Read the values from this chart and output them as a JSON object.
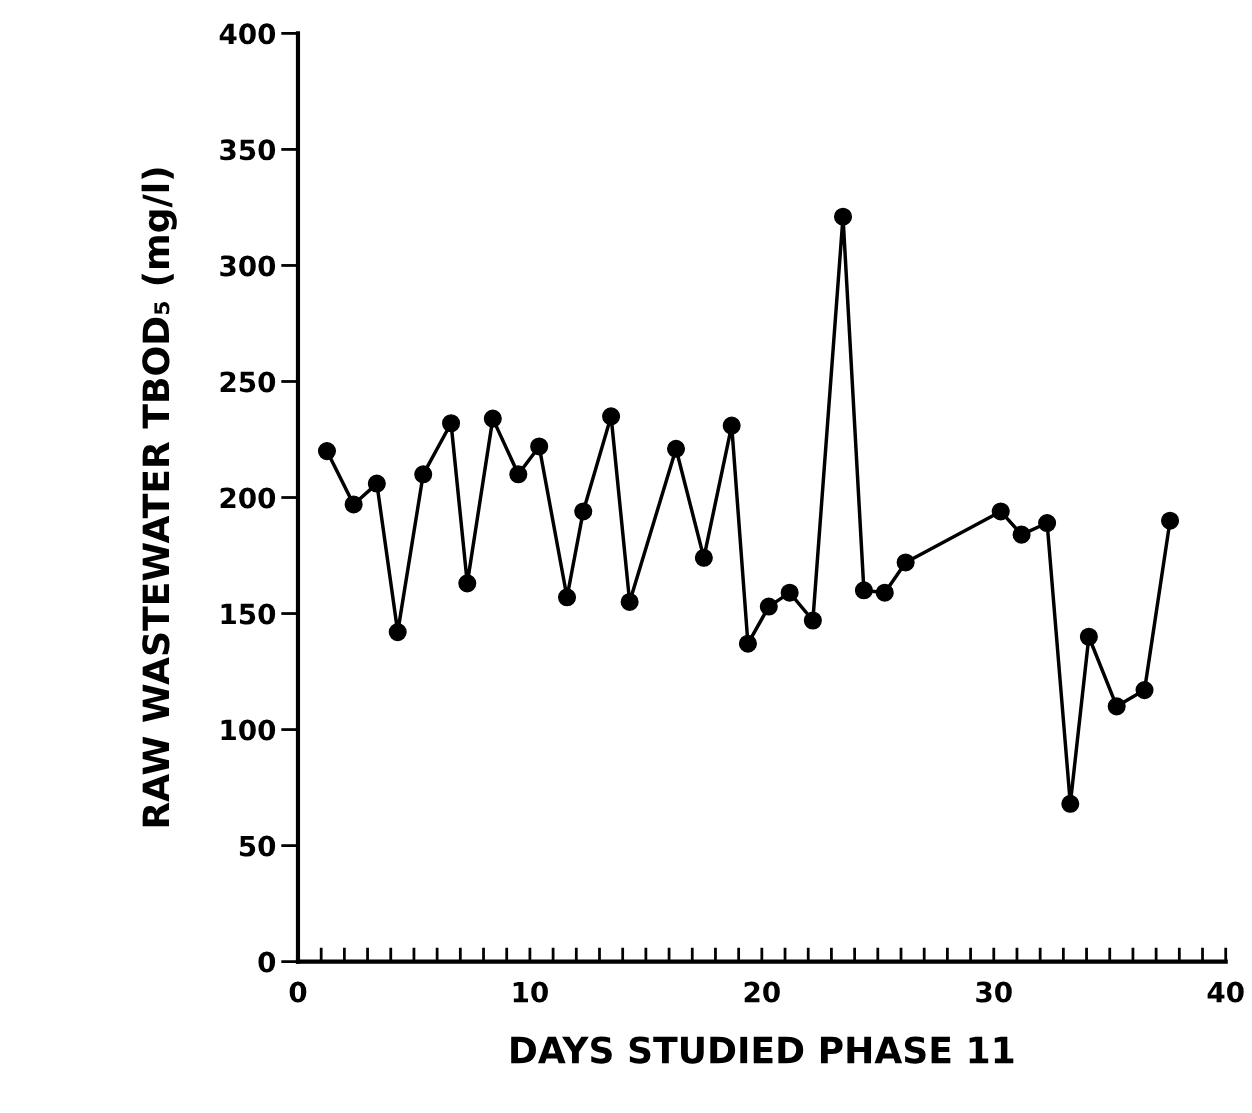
{
  "chart_data": {
    "type": "line",
    "xlabel": "DAYS STUDIED PHASE 11",
    "ylabel": "RAW WASTEWATER TBOD₅ (mg/l)",
    "x": [
      1.25,
      2.4,
      3.4,
      4.3,
      5.4,
      6.6,
      7.3,
      8.4,
      9.5,
      10.4,
      11.6,
      12.3,
      13.5,
      14.3,
      16.3,
      17.5,
      18.7,
      19.4,
      20.3,
      21.2,
      22.2,
      23.5,
      24.4,
      25.3,
      26.2,
      30.3,
      31.2,
      32.3,
      33.3,
      34.1,
      35.3,
      36.5,
      37.6
    ],
    "series": [
      {
        "color": "#000000",
        "values": [
          220,
          197,
          206,
          142,
          210,
          232,
          163,
          234,
          210,
          222,
          157,
          194,
          235,
          155,
          221,
          174,
          231,
          137,
          153,
          159,
          147,
          321,
          160,
          159,
          172,
          194,
          184,
          189,
          68,
          140,
          110,
          117,
          190
        ]
      }
    ],
    "marker": "circle",
    "line_style": "solid",
    "grid": false,
    "legend": false,
    "xlim": [
      0,
      40
    ],
    "ylim": [
      0,
      400
    ],
    "xticks": [
      0,
      {
        "value": 1,
        "label": null
      },
      {
        "value": 2,
        "label": null
      },
      {
        "value": 3,
        "label": null
      },
      {
        "value": 4,
        "label": null
      },
      {
        "value": 5,
        "label": null
      },
      {
        "value": 6,
        "label": null
      },
      {
        "value": 7,
        "label": null
      },
      {
        "value": 8,
        "label": null
      },
      {
        "value": 9,
        "label": null
      },
      10,
      {
        "value": 11,
        "label": null
      },
      {
        "value": 12,
        "label": null
      },
      {
        "value": 13,
        "label": null
      },
      {
        "value": 14,
        "label": null
      },
      {
        "value": 15,
        "label": null
      },
      {
        "value": 16,
        "label": null
      },
      {
        "value": 17,
        "label": null
      },
      {
        "value": 18,
        "label": null
      },
      {
        "value": 19,
        "label": null
      },
      20,
      {
        "value": 21,
        "label": null
      },
      {
        "value": 22,
        "label": null
      },
      {
        "value": 23,
        "label": null
      },
      {
        "value": 24,
        "label": null
      },
      {
        "value": 25,
        "label": null
      },
      {
        "value": 26,
        "label": null
      },
      {
        "value": 27,
        "label": null
      },
      {
        "value": 28,
        "label": null
      },
      {
        "value": 29,
        "label": null
      },
      30,
      {
        "value": 31,
        "label": null
      },
      {
        "value": 32,
        "label": null
      },
      {
        "value": 33,
        "label": null
      },
      {
        "value": 34,
        "label": null
      },
      {
        "value": 35,
        "label": null
      },
      {
        "value": 36,
        "label": null
      },
      {
        "value": 37,
        "label": null
      },
      {
        "value": 38,
        "label": null
      },
      {
        "value": 39,
        "label": null
      },
      40
    ],
    "yticks": [
      0,
      50,
      100,
      150,
      200,
      250,
      300,
      350,
      400
    ]
  }
}
